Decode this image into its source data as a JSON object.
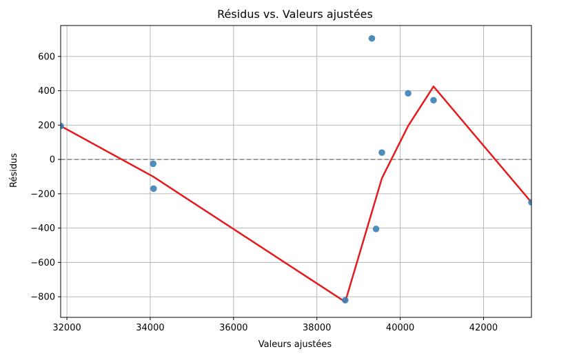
{
  "chart_data": {
    "type": "scatter",
    "title": "Résidus vs. Valeurs ajustées",
    "xlabel": "Valeurs ajustées",
    "ylabel": "Résidus",
    "xlim": [
      31850,
      43150
    ],
    "ylim": [
      -920,
      780
    ],
    "xticks": [
      32000,
      34000,
      36000,
      38000,
      40000,
      42000
    ],
    "xtick_labels": [
      "32000",
      "34000",
      "36000",
      "38000",
      "40000",
      "42000"
    ],
    "yticks": [
      -800,
      -600,
      -400,
      -200,
      0,
      200,
      400,
      600
    ],
    "ytick_labels": [
      "−800",
      "−600",
      "−400",
      "−200",
      "0",
      "200",
      "400",
      "600"
    ],
    "grid": true,
    "reference_line": {
      "y": 0,
      "style": "dashed",
      "color": "#808080"
    },
    "points_color": "#3b7fb5",
    "line_color": "#e41a1c",
    "series": [
      {
        "type": "scatter",
        "points": [
          {
            "x": 31850,
            "y": 195
          },
          {
            "x": 34070,
            "y": -25
          },
          {
            "x": 34080,
            "y": -170
          },
          {
            "x": 38680,
            "y": -820
          },
          {
            "x": 39320,
            "y": 705
          },
          {
            "x": 39420,
            "y": -405
          },
          {
            "x": 39560,
            "y": 40
          },
          {
            "x": 40190,
            "y": 385
          },
          {
            "x": 40800,
            "y": 345
          },
          {
            "x": 43150,
            "y": -250
          }
        ]
      },
      {
        "type": "line",
        "points": [
          {
            "x": 31850,
            "y": 195
          },
          {
            "x": 34070,
            "y": -100
          },
          {
            "x": 38680,
            "y": -830
          },
          {
            "x": 39560,
            "y": -110
          },
          {
            "x": 40190,
            "y": 195
          },
          {
            "x": 40800,
            "y": 425
          },
          {
            "x": 43150,
            "y": -250
          }
        ]
      }
    ]
  }
}
